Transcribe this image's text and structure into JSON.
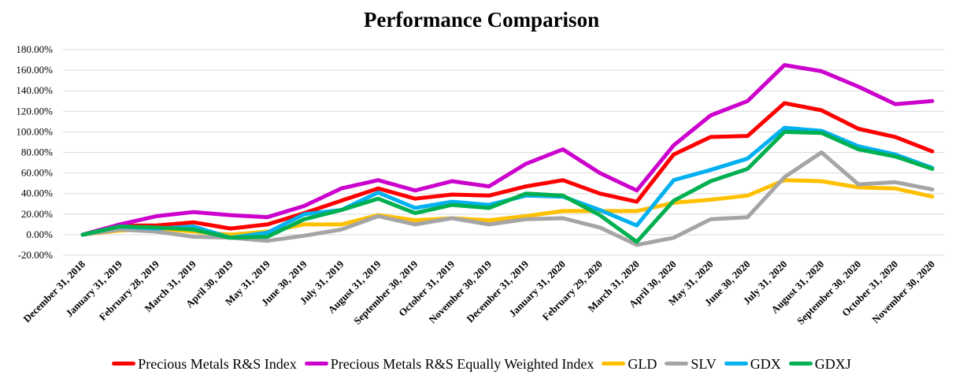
{
  "chart_data": {
    "type": "line",
    "title": "Performance Comparison",
    "xlabel": "",
    "ylabel": "",
    "ylim": [
      -20,
      180
    ],
    "y_ticks": [
      "-20.00%",
      "0.00%",
      "20.00%",
      "40.00%",
      "60.00%",
      "80.00%",
      "100.00%",
      "120.00%",
      "140.00%",
      "160.00%",
      "180.00%"
    ],
    "grid": "horizontal",
    "legend_position": "bottom",
    "categories": [
      "December 31, 2018",
      "January 31, 2019",
      "February 28, 2019",
      "March 31, 2019",
      "April 30, 2019",
      "May 31, 2019",
      "June 30, 2019",
      "July 31, 2019",
      "August 31, 2019",
      "September 30, 2019",
      "October 31, 2019",
      "November 30, 2019",
      "December 31, 2019",
      "January 31, 2020",
      "February 29, 2020",
      "March 31, 2020",
      "April 30, 2020",
      "May 31, 2020",
      "June 30, 2020",
      "July 31, 2020",
      "August 31, 2020",
      "September 30, 2020",
      "October 31, 2020",
      "November 30, 2020"
    ],
    "series": [
      {
        "name": "Precious Metals R&S Index",
        "color": "#ff0000",
        "values": [
          0,
          9,
          9,
          12,
          6,
          10,
          21,
          33,
          45,
          35,
          39,
          38,
          47,
          53,
          40,
          32,
          78,
          95,
          96,
          128,
          121,
          103,
          95,
          81
        ]
      },
      {
        "name": "Precious Metals R&S Equally Weighted Index",
        "color": "#cc00cc",
        "values": [
          0,
          10,
          18,
          22,
          19,
          17,
          28,
          45,
          53,
          43,
          52,
          47,
          69,
          83,
          60,
          43,
          87,
          116,
          130,
          165,
          159,
          144,
          127,
          130
        ]
      },
      {
        "name": "GLD",
        "color": "#ffc000",
        "values": [
          0,
          4,
          6,
          3,
          0,
          3,
          10,
          10,
          19,
          14,
          16,
          14,
          18,
          23,
          23,
          23,
          31,
          34,
          38,
          53,
          52,
          46,
          45,
          37
        ]
      },
      {
        "name": "SLV",
        "color": "#a5a5a5",
        "values": [
          0,
          5,
          3,
          -2,
          -3,
          -6,
          -1,
          5,
          18,
          10,
          16,
          10,
          15,
          16,
          7,
          -10,
          -3,
          15,
          17,
          56,
          80,
          49,
          51,
          44
        ]
      },
      {
        "name": "GDX",
        "color": "#00b0f0",
        "values": [
          0,
          8,
          6,
          8,
          -3,
          2,
          20,
          24,
          41,
          26,
          32,
          29,
          38,
          37,
          24,
          9,
          53,
          63,
          74,
          104,
          101,
          86,
          78,
          65
        ]
      },
      {
        "name": "GDXJ",
        "color": "#00b050",
        "values": [
          0,
          8,
          7,
          5,
          -3,
          -2,
          15,
          24,
          35,
          21,
          29,
          26,
          40,
          38,
          19,
          -7,
          33,
          52,
          64,
          100,
          99,
          83,
          76,
          64
        ]
      }
    ]
  }
}
